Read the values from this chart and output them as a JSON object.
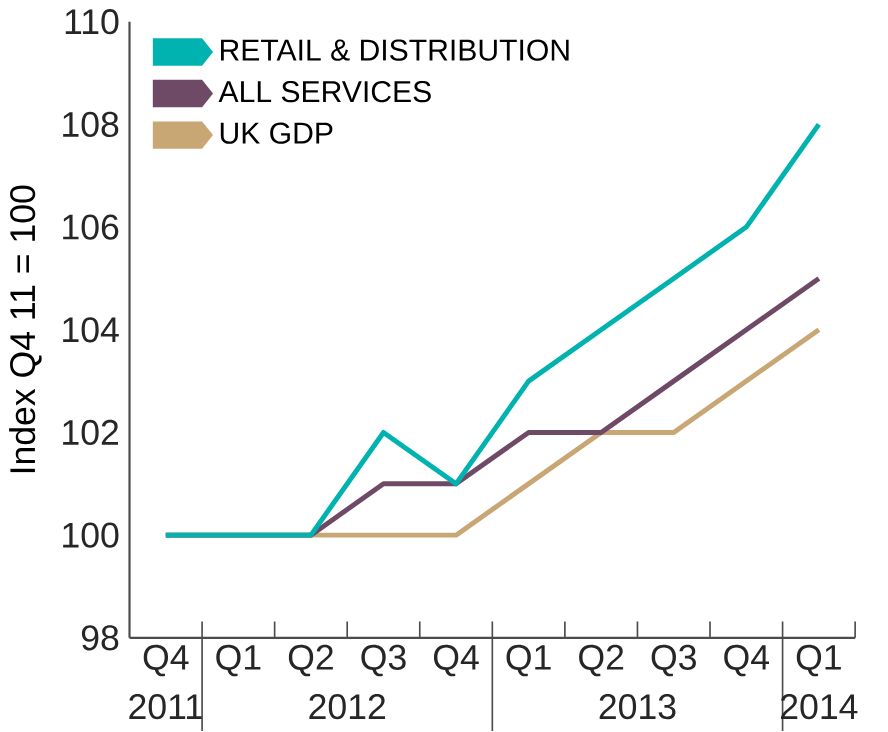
{
  "chart_data": {
    "type": "line",
    "ylabel": "Index Q4 11 = 100",
    "categories": [
      "Q4",
      "Q1",
      "Q2",
      "Q3",
      "Q4",
      "Q1",
      "Q2",
      "Q3",
      "Q4",
      "Q1"
    ],
    "annotations": [
      "2011",
      "2012",
      "2013",
      "2014"
    ],
    "series": [
      {
        "name": "RETAIL & DISTRIBUTION",
        "color": "#00b2b0",
        "values": [
          100,
          100,
          100,
          102,
          101,
          103,
          104,
          105,
          106,
          108
        ]
      },
      {
        "name": "ALL SERVICES",
        "color": "#6e4a66",
        "values": [
          100,
          100,
          100,
          101,
          101,
          102,
          102,
          103,
          104,
          105
        ]
      },
      {
        "name": "UK GDP",
        "color": "#c8a775",
        "values": [
          100,
          100,
          100,
          100,
          100,
          101,
          102,
          102,
          103,
          104
        ]
      }
    ],
    "ylim": [
      98,
      110
    ],
    "yticks": [
      98,
      100,
      102,
      104,
      106,
      108,
      110
    ],
    "legend": "top left"
  }
}
